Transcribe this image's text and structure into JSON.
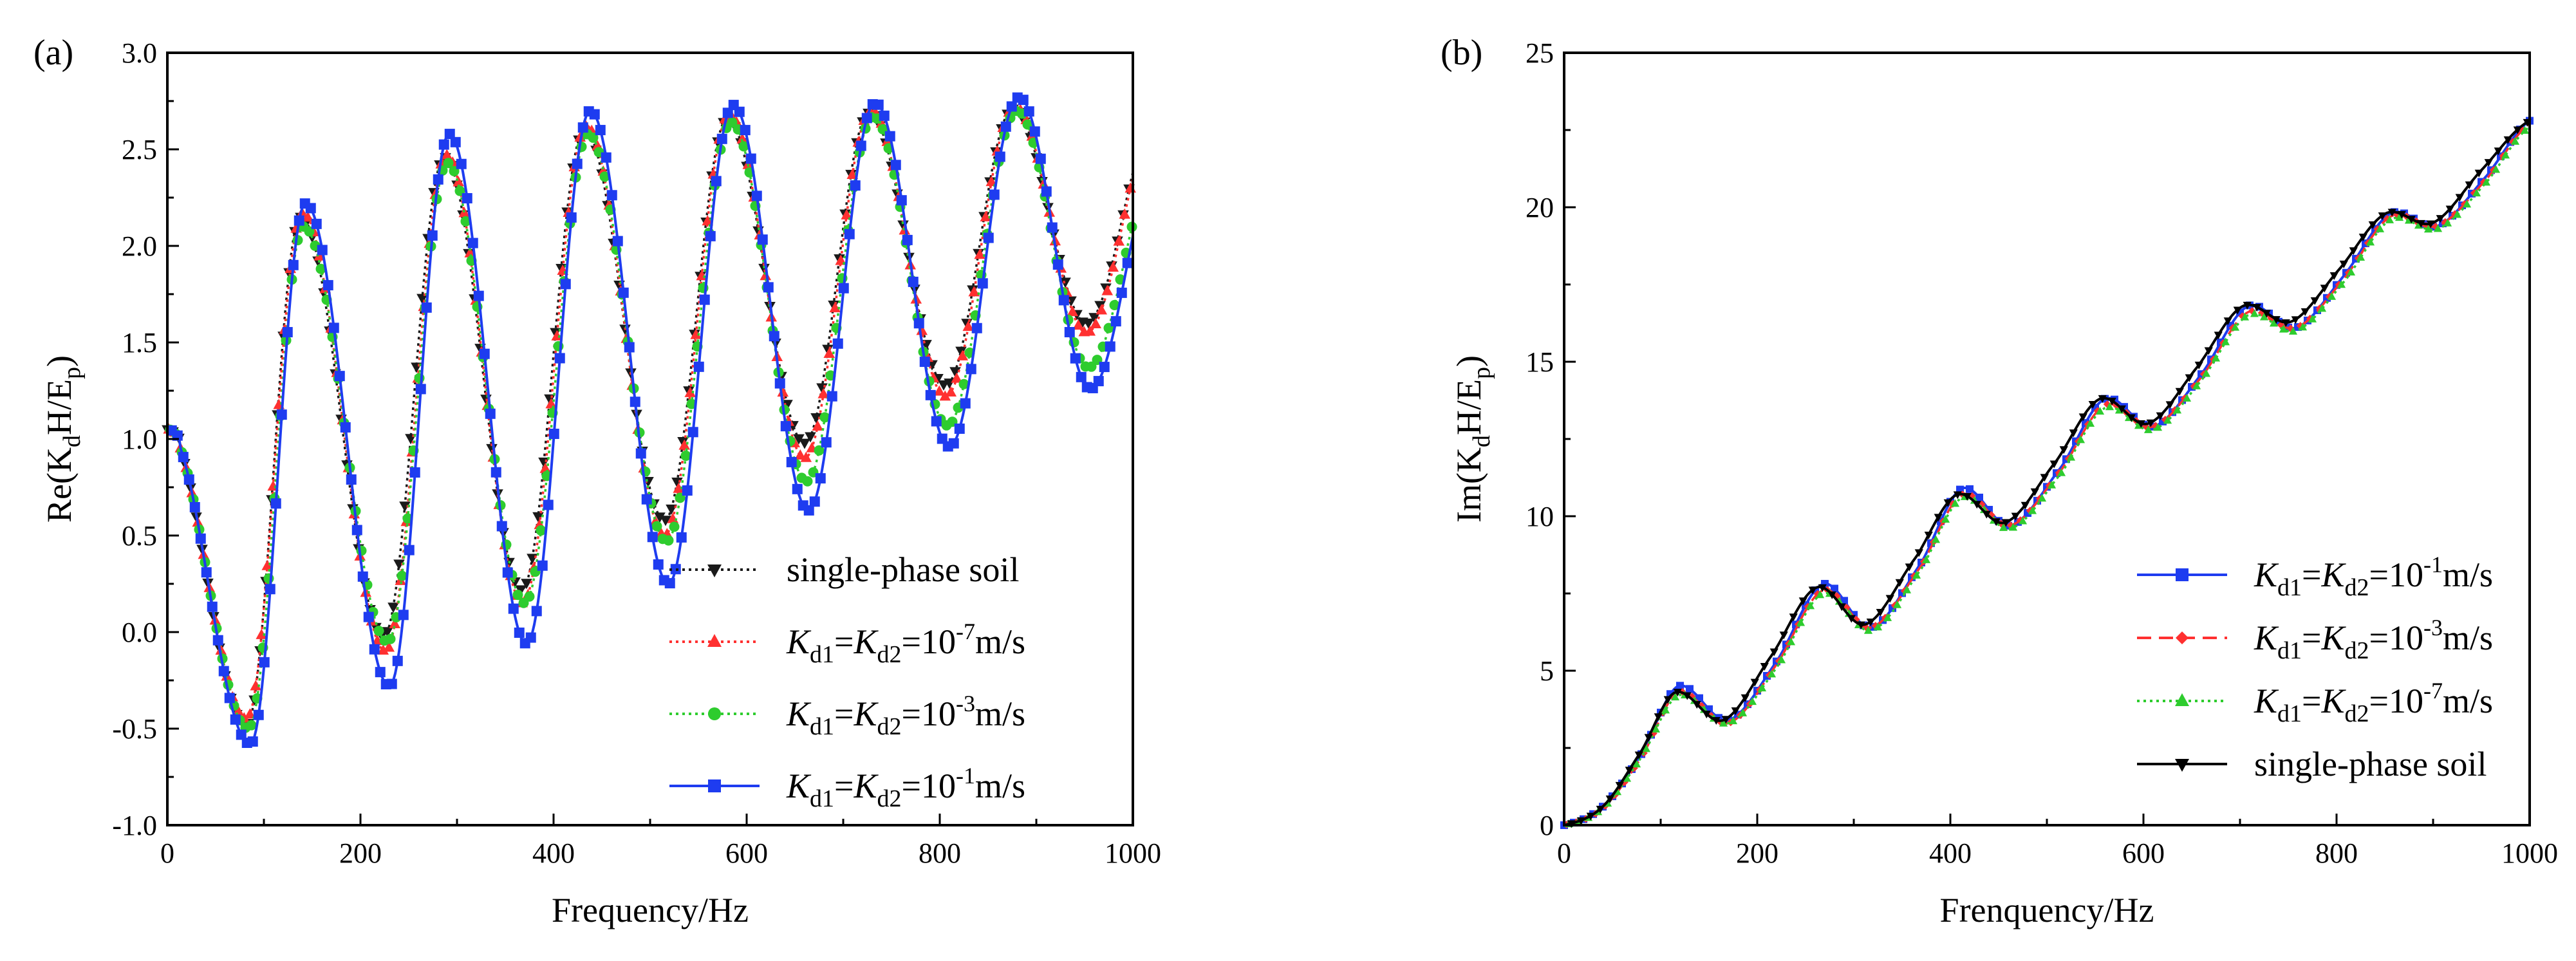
{
  "chart_data": [
    {
      "type": "line",
      "panel_label": "(a)",
      "xlabel": "Frequency/Hz",
      "ylabel": {
        "prefix": "Re(K",
        "sub1": "d",
        "mid": "H/E",
        "sub2": "p",
        "suffix": ")"
      },
      "xlim": [
        0,
        1000
      ],
      "ylim": [
        -1.0,
        3.0
      ],
      "xticks": [
        "0",
        "200",
        "400",
        "600",
        "800",
        "1000"
      ],
      "yticks": [
        "-1.0",
        "-0.5",
        "0.0",
        "0.5",
        "1.0",
        "1.5",
        "2.0",
        "2.5",
        "3.0"
      ],
      "legend_position": "bottom-right",
      "series": [
        {
          "legend": {
            "plain": "single-phase soil"
          },
          "color": "#1a1a1a",
          "dash": "dotted",
          "marker": "triangle-down",
          "minima": [
            [
              0,
              1.05
            ],
            [
              82,
              -0.48
            ],
            [
              224,
              -0.02
            ],
            [
              367,
              0.22
            ],
            [
              515,
              0.58
            ],
            [
              660,
              0.98
            ],
            [
              806,
              1.28
            ],
            [
              952,
              1.6
            ]
          ],
          "maxima": [
            [
              138,
              2.15
            ],
            [
              287,
              2.46
            ],
            [
              432,
              2.6
            ],
            [
              580,
              2.66
            ],
            [
              727,
              2.69
            ],
            [
              876,
              2.71
            ]
          ],
          "end": [
            1000,
            2.38
          ]
        },
        {
          "legend": {
            "k1": "K",
            "s1": "d1",
            "eq1": "=",
            "k2": "K",
            "s2": "d2",
            "eq2": "=10",
            "exp": "-7",
            "unit": "m/s"
          },
          "color": "#ff3030",
          "dash": "dotted",
          "marker": "triangle",
          "minima": [
            [
              0,
              1.05
            ],
            [
              82,
              -0.45
            ],
            [
              226,
              -0.1
            ],
            [
              368,
              0.15
            ],
            [
              515,
              0.5
            ],
            [
              660,
              0.9
            ],
            [
              806,
              1.22
            ],
            [
              952,
              1.55
            ]
          ],
          "maxima": [
            [
              140,
              2.17
            ],
            [
              289,
              2.47
            ],
            [
              434,
              2.62
            ],
            [
              582,
              2.68
            ],
            [
              729,
              2.7
            ],
            [
              878,
              2.72
            ]
          ],
          "end": [
            1000,
            2.35
          ]
        },
        {
          "legend": {
            "k1": "K",
            "s1": "d1",
            "eq1": "=",
            "k2": "K",
            "s2": "d2",
            "eq2": "=10",
            "exp": "-3",
            "unit": "m/s"
          },
          "color": "#2ecc2e",
          "dash": "dotted",
          "marker": "circle",
          "minima": [
            [
              0,
              1.05
            ],
            [
              84,
              -0.5
            ],
            [
              228,
              -0.05
            ],
            [
              370,
              0.15
            ],
            [
              517,
              0.47
            ],
            [
              662,
              0.78
            ],
            [
              808,
              1.07
            ],
            [
              954,
              1.37
            ]
          ],
          "maxima": [
            [
              141,
              2.1
            ],
            [
              290,
              2.43
            ],
            [
              436,
              2.58
            ],
            [
              584,
              2.64
            ],
            [
              731,
              2.67
            ],
            [
              880,
              2.7
            ]
          ],
          "end": [
            1000,
            2.12
          ]
        },
        {
          "legend": {
            "k1": "K",
            "s1": "d1",
            "eq1": "=",
            "k2": "K",
            "s2": "d2",
            "eq2": "=10",
            "exp": "-1",
            "unit": "m/s"
          },
          "color": "#1e3cf0",
          "dash": "solid",
          "marker": "square",
          "minima": [
            [
              0,
              1.05
            ],
            [
              86,
              -0.58
            ],
            [
              230,
              -0.28
            ],
            [
              372,
              -0.06
            ],
            [
              519,
              0.25
            ],
            [
              664,
              0.63
            ],
            [
              810,
              0.96
            ],
            [
              956,
              1.26
            ]
          ],
          "maxima": [
            [
              143,
              2.22
            ],
            [
              292,
              2.58
            ],
            [
              438,
              2.7
            ],
            [
              586,
              2.73
            ],
            [
              733,
              2.74
            ],
            [
              882,
              2.77
            ]
          ],
          "end": [
            1000,
            2.05
          ]
        }
      ]
    },
    {
      "type": "line",
      "panel_label": "(b)",
      "xlabel": "Frenquency/Hz",
      "ylabel": {
        "prefix": "Im(K",
        "sub1": "d",
        "mid": "H/E",
        "sub2": "p",
        "suffix": ")"
      },
      "xlim": [
        0,
        1000
      ],
      "ylim": [
        0,
        25
      ],
      "xticks": [
        "0",
        "200",
        "400",
        "600",
        "800",
        "1000"
      ],
      "yticks": [
        "0",
        "5",
        "10",
        "15",
        "20",
        "25"
      ],
      "legend_position": "bottom-right",
      "series": [
        {
          "legend": {
            "k1": "K",
            "s1": "d1",
            "eq1": "=",
            "k2": "K",
            "s2": "d2",
            "eq2": "=10",
            "exp": "-1",
            "unit": "m/s"
          },
          "color": "#1e3cf0",
          "dash": "solid",
          "marker": "square",
          "points": [
            [
              0,
              0
            ],
            [
              40,
              0.6
            ],
            [
              80,
              2.3
            ],
            [
              118,
              4.5
            ],
            [
              170,
              3.4
            ],
            [
              220,
              5.3
            ],
            [
              268,
              7.8
            ],
            [
              318,
              6.4
            ],
            [
              370,
              8.5
            ],
            [
              412,
              10.9
            ],
            [
              462,
              9.7
            ],
            [
              515,
              11.6
            ],
            [
              560,
              13.8
            ],
            [
              610,
              12.9
            ],
            [
              660,
              14.6
            ],
            [
              708,
              16.8
            ],
            [
              758,
              16.1
            ],
            [
              808,
              17.8
            ],
            [
              856,
              19.8
            ],
            [
              905,
              19.4
            ],
            [
              955,
              21.0
            ],
            [
              1000,
              22.8
            ]
          ]
        },
        {
          "legend": {
            "k1": "K",
            "s1": "d1",
            "eq1": "=",
            "k2": "K",
            "s2": "d2",
            "eq2": "=10",
            "exp": "-3",
            "unit": "m/s"
          },
          "color": "#ff3030",
          "dash": "dashed",
          "marker": "diamond",
          "points": [
            [
              0,
              0
            ],
            [
              40,
              0.55
            ],
            [
              80,
              2.2
            ],
            [
              118,
              4.3
            ],
            [
              170,
              3.3
            ],
            [
              220,
              5.2
            ],
            [
              268,
              7.6
            ],
            [
              318,
              6.4
            ],
            [
              370,
              8.4
            ],
            [
              412,
              10.7
            ],
            [
              462,
              9.7
            ],
            [
              515,
              11.5
            ],
            [
              560,
              13.6
            ],
            [
              610,
              12.9
            ],
            [
              660,
              14.5
            ],
            [
              708,
              16.6
            ],
            [
              758,
              16.1
            ],
            [
              808,
              17.7
            ],
            [
              856,
              19.7
            ],
            [
              905,
              19.4
            ],
            [
              955,
              20.9
            ],
            [
              1000,
              22.7
            ]
          ]
        },
        {
          "legend": {
            "k1": "K",
            "s1": "d1",
            "eq1": "=",
            "k2": "K",
            "s2": "d2",
            "eq2": "=10",
            "exp": "-7",
            "unit": "m/s"
          },
          "color": "#2ecc2e",
          "dash": "dotted",
          "marker": "triangle",
          "points": [
            [
              0,
              0
            ],
            [
              40,
              0.55
            ],
            [
              80,
              2.2
            ],
            [
              118,
              4.2
            ],
            [
              170,
              3.3
            ],
            [
              220,
              5.1
            ],
            [
              268,
              7.5
            ],
            [
              318,
              6.3
            ],
            [
              370,
              8.3
            ],
            [
              412,
              10.6
            ],
            [
              462,
              9.6
            ],
            [
              515,
              11.4
            ],
            [
              560,
              13.5
            ],
            [
              610,
              12.8
            ],
            [
              660,
              14.4
            ],
            [
              708,
              16.5
            ],
            [
              758,
              16.0
            ],
            [
              808,
              17.6
            ],
            [
              856,
              19.6
            ],
            [
              905,
              19.3
            ],
            [
              955,
              20.8
            ],
            [
              1000,
              22.6
            ]
          ]
        },
        {
          "legend": {
            "plain": "single-phase soil"
          },
          "color": "#000000",
          "dash": "solid",
          "marker": "triangle-down",
          "points": [
            [
              0,
              0
            ],
            [
              40,
              0.6
            ],
            [
              80,
              2.4
            ],
            [
              115,
              4.3
            ],
            [
              165,
              3.4
            ],
            [
              215,
              5.5
            ],
            [
              262,
              7.7
            ],
            [
              312,
              6.5
            ],
            [
              365,
              8.7
            ],
            [
              407,
              10.7
            ],
            [
              457,
              9.8
            ],
            [
              510,
              11.8
            ],
            [
              555,
              13.8
            ],
            [
              605,
              13.0
            ],
            [
              655,
              14.8
            ],
            [
              703,
              16.8
            ],
            [
              753,
              16.3
            ],
            [
              803,
              18.0
            ],
            [
              851,
              19.8
            ],
            [
              900,
              19.5
            ],
            [
              950,
              21.2
            ],
            [
              1000,
              22.8
            ]
          ]
        }
      ]
    }
  ]
}
